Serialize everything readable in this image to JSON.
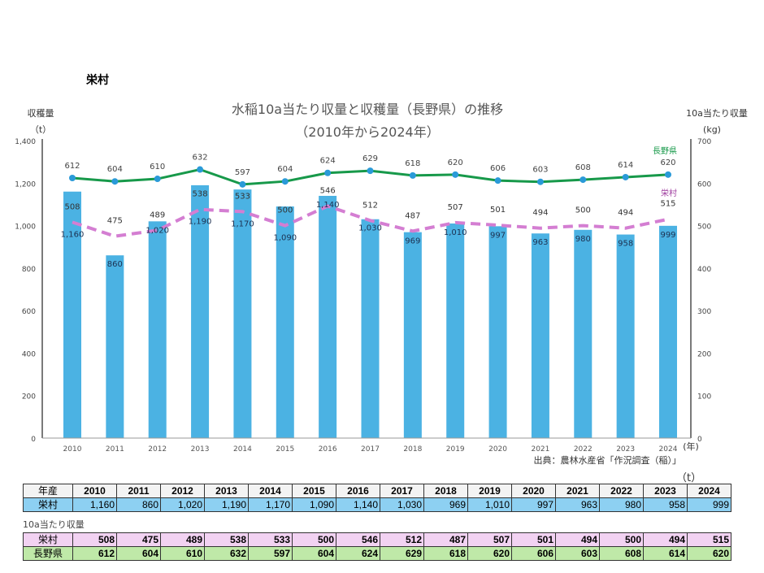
{
  "page_title": "栄村",
  "source": "出典：農林水産省「作況調査（稲）」",
  "table_unit": "（t）",
  "sub_label": "10a当たり収量",
  "chart_data": {
    "type": "bar+line",
    "title": "水稲10a当たり収量と収穫量（長野県）の推移",
    "subtitle": "（2010年から2024年）",
    "ylabel_left": "収穫量",
    "ylabel_left_unit": "（t）",
    "ylabel_right": "10a当たり収量",
    "ylabel_right_unit": "(kg)",
    "xlabel_unit": "(年)",
    "ylim_left": [
      0,
      1400
    ],
    "ylim_right": [
      0,
      700
    ],
    "yticks_left": [
      "0",
      "200",
      "400",
      "600",
      "800",
      "1,000",
      "1,200",
      "1,400"
    ],
    "yticks_right": [
      "0",
      "100",
      "200",
      "300",
      "400",
      "500",
      "600",
      "700"
    ],
    "categories": [
      "2010",
      "2011",
      "2012",
      "2013",
      "2014",
      "2015",
      "2016",
      "2017",
      "2018",
      "2019",
      "2020",
      "2021",
      "2022",
      "2023",
      "2024"
    ],
    "grid": false,
    "series": [
      {
        "name": "栄村",
        "kind": "bar",
        "axis": "left",
        "color": "#4bb2e3",
        "values": [
          1160,
          860,
          1020,
          1190,
          1170,
          1090,
          1140,
          1030,
          969,
          1010,
          997,
          963,
          980,
          958,
          999
        ],
        "labels": [
          "1,160",
          "860",
          "1,020",
          "1,190",
          "1,170",
          "1,090",
          "1,140",
          "1,030",
          "969",
          "1,010",
          "997",
          "963",
          "980",
          "958",
          "999"
        ]
      },
      {
        "name": "長野県",
        "kind": "line",
        "axis": "right",
        "color": "#17994a",
        "marker_color": "#2a9ad8",
        "values": [
          612,
          604,
          610,
          632,
          597,
          604,
          624,
          629,
          618,
          620,
          606,
          603,
          608,
          614,
          620
        ]
      },
      {
        "name": "栄村",
        "kind": "dashed-line",
        "axis": "right",
        "color": "#d47ed2",
        "values": [
          508,
          475,
          489,
          538,
          533,
          500,
          546,
          512,
          487,
          507,
          501,
          494,
          500,
          494,
          515
        ]
      }
    ]
  },
  "table": {
    "header_label": "年産",
    "harvest_row_label": "栄村",
    "yield_rows": [
      {
        "label": "栄村"
      },
      {
        "label": "長野県"
      }
    ]
  }
}
